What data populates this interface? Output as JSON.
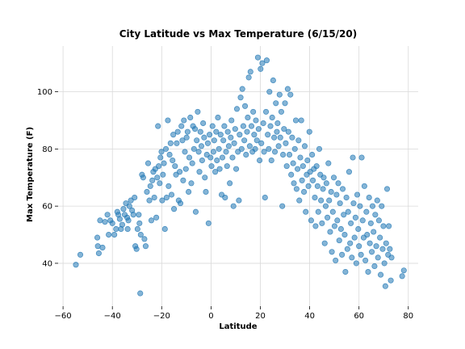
{
  "chart_data": {
    "type": "scatter",
    "title": "City Latitude vs Max Temperature (6/15/20)",
    "xlabel": "Latitude",
    "ylabel": "Max Temperature (F)",
    "xlim": [
      -62,
      84
    ],
    "ylim": [
      25,
      116
    ],
    "xticks": [
      -60,
      -40,
      -20,
      0,
      20,
      40,
      60,
      80
    ],
    "xtick_labels": [
      "−60",
      "−40",
      "−20",
      "0",
      "20",
      "40",
      "60",
      "80"
    ],
    "yticks": [
      40,
      60,
      80,
      100
    ],
    "ytick_labels": [
      "40",
      "60",
      "80",
      "100"
    ],
    "grid": true,
    "marker_color": "#1f77b4",
    "marker_edge_color": "#1f77b4",
    "marker_alpha": 0.55,
    "points": [
      [
        -54.8,
        39.5
      ],
      [
        -53,
        43
      ],
      [
        -46.1,
        49
      ],
      [
        -45.9,
        46
      ],
      [
        -45,
        55
      ],
      [
        -45.5,
        43.5
      ],
      [
        -44,
        45.5
      ],
      [
        -43,
        54.5
      ],
      [
        -42,
        57
      ],
      [
        -41.5,
        50
      ],
      [
        -40.8,
        55
      ],
      [
        -40,
        54
      ],
      [
        -39.2,
        50
      ],
      [
        -38.5,
        52
      ],
      [
        -38,
        58
      ],
      [
        -37.6,
        57
      ],
      [
        -37,
        55.5
      ],
      [
        -36.5,
        52
      ],
      [
        -36,
        53.5
      ],
      [
        -35.5,
        59
      ],
      [
        -35,
        57
      ],
      [
        -34.5,
        61
      ],
      [
        -34,
        56
      ],
      [
        -33.8,
        52
      ],
      [
        -33.5,
        55
      ],
      [
        -33.1,
        60
      ],
      [
        -32.5,
        62
      ],
      [
        -32,
        58.5
      ],
      [
        -31.5,
        57
      ],
      [
        -31,
        63
      ],
      [
        -30.7,
        46
      ],
      [
        -30.2,
        45
      ],
      [
        -29.8,
        52
      ],
      [
        -29.3,
        57
      ],
      [
        -29,
        54
      ],
      [
        -28.5,
        50
      ],
      [
        -28.7,
        29.5
      ],
      [
        -28,
        71
      ],
      [
        -27.5,
        70
      ],
      [
        -27,
        48.5
      ],
      [
        -26.5,
        46
      ],
      [
        -26,
        65
      ],
      [
        -25.5,
        75
      ],
      [
        -25,
        62
      ],
      [
        -24.6,
        67
      ],
      [
        -24.2,
        55
      ],
      [
        -23.8,
        69
      ],
      [
        -23.4,
        72
      ],
      [
        -23,
        63
      ],
      [
        -22.6,
        73
      ],
      [
        -22.2,
        56
      ],
      [
        -21.8,
        70
      ],
      [
        -21.5,
        88
      ],
      [
        -21.2,
        74
      ],
      [
        -20.8,
        68
      ],
      [
        -20.5,
        77
      ],
      [
        -20.1,
        79
      ],
      [
        -19.8,
        62
      ],
      [
        -19.5,
        71
      ],
      [
        -19.1,
        75
      ],
      [
        -18.7,
        52
      ],
      [
        -18.3,
        80
      ],
      [
        -18,
        63
      ],
      [
        -17.5,
        90
      ],
      [
        -17.2,
        67
      ],
      [
        -16.8,
        78
      ],
      [
        -16.4,
        82
      ],
      [
        -16,
        64
      ],
      [
        -15.6,
        76
      ],
      [
        -15.3,
        85
      ],
      [
        -15,
        59
      ],
      [
        -14.6,
        74
      ],
      [
        -14.2,
        71
      ],
      [
        -13.9,
        82
      ],
      [
        -13.5,
        86
      ],
      [
        -13.1,
        62
      ],
      [
        -12.7,
        72
      ],
      [
        -12.4,
        61
      ],
      [
        -12,
        88
      ],
      [
        -11.6,
        83
      ],
      [
        -11.3,
        69
      ],
      [
        -11,
        90
      ],
      [
        -10.6,
        79
      ],
      [
        -10.2,
        73
      ],
      [
        -9.9,
        84
      ],
      [
        -9.5,
        86
      ],
      [
        -9.1,
        65
      ],
      [
        -8.8,
        77
      ],
      [
        -8.4,
        91
      ],
      [
        -8,
        68
      ],
      [
        -7.6,
        75
      ],
      [
        -7.3,
        88
      ],
      [
        -6.9,
        80
      ],
      [
        -6.5,
        87
      ],
      [
        -6.2,
        58
      ],
      [
        -5.8,
        83
      ],
      [
        -5.4,
        93
      ],
      [
        -5,
        79
      ],
      [
        -4.7,
        72
      ],
      [
        -4.3,
        86
      ],
      [
        -3.9,
        81
      ],
      [
        -3.6,
        76
      ],
      [
        -3.2,
        89
      ],
      [
        -2.8,
        84
      ],
      [
        -2.5,
        70
      ],
      [
        -2.1,
        65
      ],
      [
        -1.7,
        78
      ],
      [
        -1.3,
        82
      ],
      [
        -1,
        54
      ],
      [
        -0.6,
        85
      ],
      [
        -0.2,
        77
      ],
      [
        0.2,
        74
      ],
      [
        0.6,
        88
      ],
      [
        1,
        79
      ],
      [
        1.3,
        83
      ],
      [
        1.7,
        72
      ],
      [
        2.1,
        86
      ],
      [
        2.4,
        76
      ],
      [
        2.8,
        91
      ],
      [
        3.2,
        80
      ],
      [
        3.5,
        73
      ],
      [
        3.9,
        85
      ],
      [
        4.3,
        64
      ],
      [
        4.6,
        77
      ],
      [
        5,
        83
      ],
      [
        5.4,
        88
      ],
      [
        5.7,
        63
      ],
      [
        6.1,
        79
      ],
      [
        6.5,
        74
      ],
      [
        6.8,
        86
      ],
      [
        7.2,
        81
      ],
      [
        7.6,
        68
      ],
      [
        8,
        84
      ],
      [
        8.3,
        90
      ],
      [
        8.7,
        77
      ],
      [
        9.1,
        60
      ],
      [
        9.4,
        82
      ],
      [
        9.8,
        87
      ],
      [
        10.2,
        73
      ],
      [
        10.5,
        94
      ],
      [
        10.9,
        79
      ],
      [
        11.3,
        62
      ],
      [
        11.6,
        85
      ],
      [
        12,
        98
      ],
      [
        12.4,
        80
      ],
      [
        12.7,
        101
      ],
      [
        13.1,
        88
      ],
      [
        13.5,
        83
      ],
      [
        13.8,
        95
      ],
      [
        14.2,
        78
      ],
      [
        14.6,
        86
      ],
      [
        14.9,
        91
      ],
      [
        15.3,
        105
      ],
      [
        15.7,
        81
      ],
      [
        16,
        107
      ],
      [
        16.4,
        88
      ],
      [
        16.8,
        79
      ],
      [
        17.1,
        93
      ],
      [
        17.5,
        85
      ],
      [
        17.9,
        80
      ],
      [
        18.2,
        90
      ],
      [
        18.6,
        83
      ],
      [
        19,
        112
      ],
      [
        19.3,
        87
      ],
      [
        19.7,
        76
      ],
      [
        20.1,
        108
      ],
      [
        20.4,
        82
      ],
      [
        20.8,
        110
      ],
      [
        21.2,
        89
      ],
      [
        21.5,
        79
      ],
      [
        21.9,
        63
      ],
      [
        22.3,
        93
      ],
      [
        22.6,
        111
      ],
      [
        23,
        85
      ],
      [
        23.4,
        80
      ],
      [
        23.7,
        100
      ],
      [
        24.1,
        88
      ],
      [
        24.5,
        76
      ],
      [
        24.8,
        91
      ],
      [
        25.2,
        104
      ],
      [
        25.6,
        84
      ],
      [
        25.9,
        79
      ],
      [
        26.3,
        96
      ],
      [
        26.7,
        86
      ],
      [
        27,
        89
      ],
      [
        27.4,
        81
      ],
      [
        27.8,
        99
      ],
      [
        28.1,
        84
      ],
      [
        28.5,
        93
      ],
      [
        28.9,
        60
      ],
      [
        29.2,
        78
      ],
      [
        29.6,
        87
      ],
      [
        30,
        96
      ],
      [
        30.3,
        82
      ],
      [
        30.7,
        74
      ],
      [
        31.1,
        101
      ],
      [
        31.4,
        86
      ],
      [
        31.8,
        78
      ],
      [
        32.2,
        99
      ],
      [
        32.5,
        71
      ],
      [
        32.9,
        84
      ],
      [
        33.3,
        75
      ],
      [
        33.6,
        68
      ],
      [
        34,
        80
      ],
      [
        34.4,
        90
      ],
      [
        34.7,
        66
      ],
      [
        35.1,
        73
      ],
      [
        35.5,
        83
      ],
      [
        35.8,
        62
      ],
      [
        36.2,
        77
      ],
      [
        36.6,
        90
      ],
      [
        36.9,
        69
      ],
      [
        37.3,
        74
      ],
      [
        37.7,
        65
      ],
      [
        38,
        81
      ],
      [
        38.4,
        58
      ],
      [
        38.8,
        71
      ],
      [
        39.1,
        76
      ],
      [
        39.5,
        67
      ],
      [
        39.9,
        86
      ],
      [
        40.2,
        72
      ],
      [
        40.6,
        55
      ],
      [
        41,
        78
      ],
      [
        41.3,
        69
      ],
      [
        41.7,
        73
      ],
      [
        42.1,
        63
      ],
      [
        42.4,
        53
      ],
      [
        42.8,
        74
      ],
      [
        43.2,
        67
      ],
      [
        43.5,
        58
      ],
      [
        43.9,
        80
      ],
      [
        44.3,
        71
      ],
      [
        44.6,
        62
      ],
      [
        45,
        54
      ],
      [
        45.4,
        66
      ],
      [
        45.7,
        70
      ],
      [
        46.1,
        47
      ],
      [
        46.5,
        60
      ],
      [
        46.8,
        68
      ],
      [
        47.2,
        56
      ],
      [
        47.6,
        75
      ],
      [
        47.9,
        62
      ],
      [
        48.3,
        51
      ],
      [
        48.7,
        65
      ],
      [
        49,
        44
      ],
      [
        49.4,
        58
      ],
      [
        49.8,
        70
      ],
      [
        50.1,
        53
      ],
      [
        50.5,
        41
      ],
      [
        50.9,
        64
      ],
      [
        51.2,
        55
      ],
      [
        51.6,
        68
      ],
      [
        52,
        48
      ],
      [
        52.3,
        61
      ],
      [
        52.7,
        52
      ],
      [
        53.1,
        43
      ],
      [
        53.4,
        66
      ],
      [
        53.8,
        57
      ],
      [
        54.2,
        50
      ],
      [
        54.5,
        37
      ],
      [
        54.9,
        63
      ],
      [
        55.3,
        45
      ],
      [
        55.6,
        58
      ],
      [
        56,
        72
      ],
      [
        56.4,
        47
      ],
      [
        56.7,
        54
      ],
      [
        57.1,
        42
      ],
      [
        57.5,
        77
      ],
      [
        57.8,
        61
      ],
      [
        58.2,
        49
      ],
      [
        58.6,
        56
      ],
      [
        58.9,
        40
      ],
      [
        59.3,
        64
      ],
      [
        59.7,
        52
      ],
      [
        60,
        46
      ],
      [
        60.4,
        60
      ],
      [
        60.8,
        43
      ],
      [
        61.1,
        77
      ],
      [
        61.5,
        55
      ],
      [
        61.9,
        49
      ],
      [
        62.2,
        67
      ],
      [
        62.6,
        41
      ],
      [
        63,
        58
      ],
      [
        63.3,
        50
      ],
      [
        63.7,
        37
      ],
      [
        64.1,
        63
      ],
      [
        64.4,
        47
      ],
      [
        64.8,
        54
      ],
      [
        65.2,
        44
      ],
      [
        65.5,
        60
      ],
      [
        65.9,
        51
      ],
      [
        66.3,
        39
      ],
      [
        66.6,
        57
      ],
      [
        67,
        46
      ],
      [
        67.4,
        62
      ],
      [
        67.7,
        42
      ],
      [
        68.1,
        55
      ],
      [
        68.5,
        49
      ],
      [
        68.8,
        36
      ],
      [
        69.2,
        60
      ],
      [
        69.6,
        45
      ],
      [
        69.9,
        53
      ],
      [
        70.3,
        40
      ],
      [
        70.7,
        32
      ],
      [
        71,
        47
      ],
      [
        71.4,
        66
      ],
      [
        71.8,
        43
      ],
      [
        72.1,
        53
      ],
      [
        72.5,
        45
      ],
      [
        72.9,
        34
      ],
      [
        73.2,
        42
      ],
      [
        77.5,
        35.5
      ],
      [
        78.2,
        37.5
      ]
    ]
  }
}
